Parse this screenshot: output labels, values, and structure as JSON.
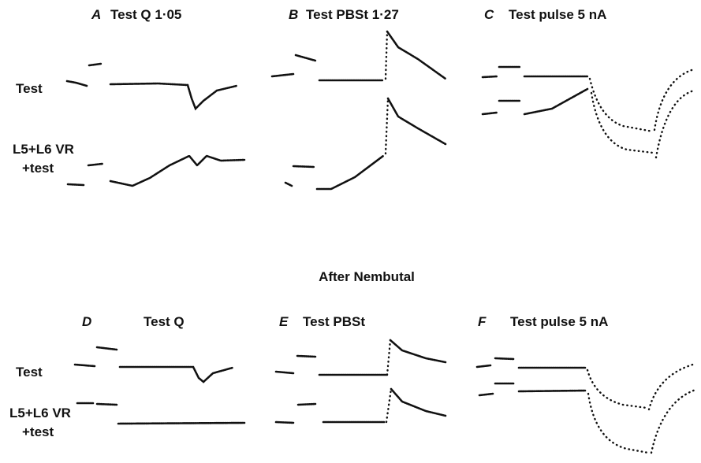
{
  "panels": [
    {
      "letter": "A",
      "title": "Test Q 1·05"
    },
    {
      "letter": "B",
      "title": "Test PBSt 1·27"
    },
    {
      "letter": "C",
      "title": "Test pulse 5 nA"
    },
    {
      "letter": "D",
      "title": "Test Q"
    },
    {
      "letter": "E",
      "title": "Test PBSt"
    },
    {
      "letter": "F",
      "title": "Test pulse 5 nA"
    }
  ],
  "row_labels": {
    "top": [
      "Test",
      "L5+L6 VR",
      "+test"
    ],
    "bottom": [
      "Test",
      "L5+L6 VR",
      "+test"
    ]
  },
  "section_title": "After Nembutal"
}
